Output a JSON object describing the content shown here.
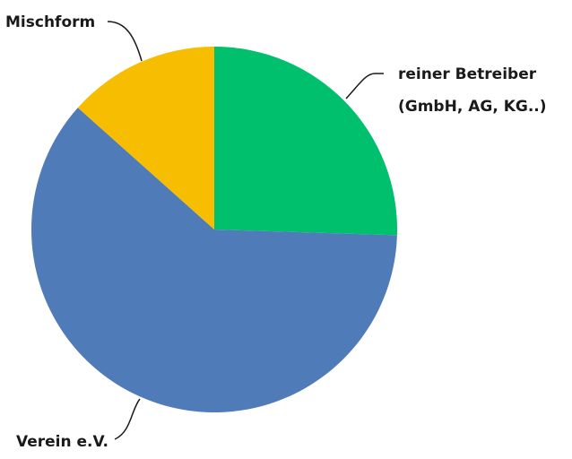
{
  "chart_data": {
    "type": "pie",
    "title": "",
    "start": "12 o'clock",
    "direction": "clockwise",
    "slices": [
      {
        "label": "reiner Betreiber (GmbH, AG, KG..)",
        "label_lines": [
          "reiner Betreiber",
          "(GmbH, AG, KG..)"
        ],
        "value": 25.5,
        "color": "#00c06e"
      },
      {
        "label": "Verein e.V.",
        "label_lines": [
          "Verein e.V."
        ],
        "value": 61.1,
        "color": "#4f7cb8"
      },
      {
        "label": "Mischform",
        "label_lines": [
          "Mischform"
        ],
        "value": 13.4,
        "color": "#f7bd00"
      }
    ]
  }
}
